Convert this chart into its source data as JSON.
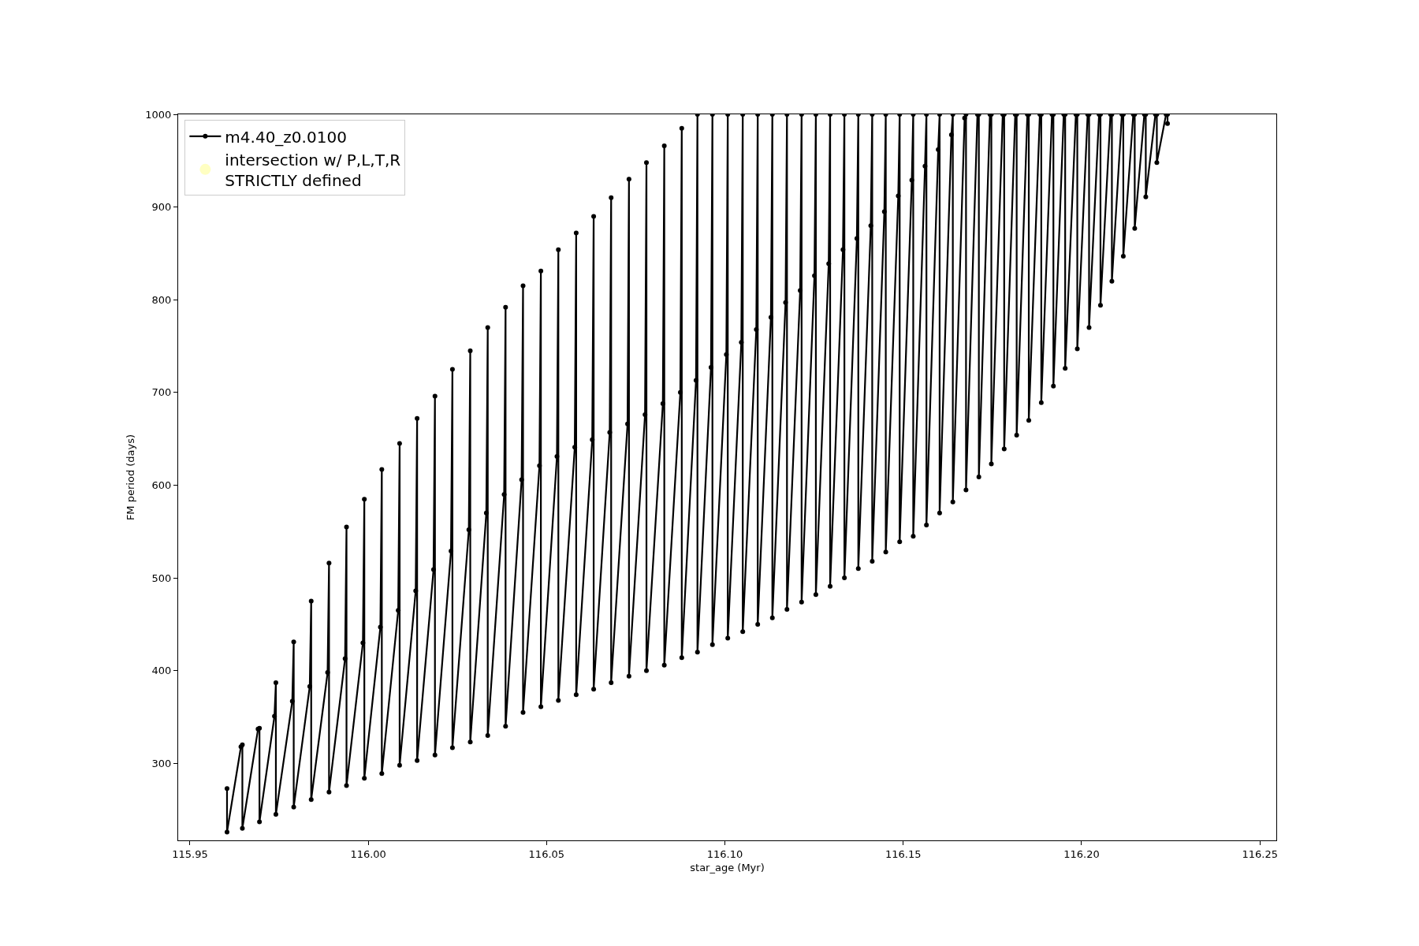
{
  "chart_data": {
    "type": "line",
    "xlabel": "star_age (Myr)",
    "ylabel": "FM period (days)",
    "xlim": [
      115.9467,
      116.2546
    ],
    "ylim": [
      217,
      1000
    ],
    "xticks": [
      {
        "value": 115.95,
        "label": "115.95"
      },
      {
        "value": 116.0,
        "label": "116.00"
      },
      {
        "value": 116.05,
        "label": "116.05"
      },
      {
        "value": 116.1,
        "label": "116.10"
      },
      {
        "value": 116.15,
        "label": "116.15"
      },
      {
        "value": 116.2,
        "label": "116.20"
      },
      {
        "value": 116.25,
        "label": "116.25"
      }
    ],
    "yticks": [
      300,
      400,
      500,
      600,
      700,
      800,
      900,
      1000
    ],
    "legend": "top left",
    "line_style": "solid",
    "series": [
      {
        "name": "m4.40_z0.0100",
        "color": "#000000",
        "marker": "circle",
        "x": [
          115.9604,
          115.9604,
          115.9643,
          115.9647,
          115.9647,
          115.9691,
          115.9695,
          115.9695,
          115.9737,
          115.9741,
          115.9741,
          115.9787,
          115.9791,
          115.9791,
          115.9836,
          115.984,
          115.984,
          115.9886,
          115.989,
          115.989,
          115.9935,
          115.9939,
          115.9939,
          115.9985,
          115.9989,
          115.9989,
          116.0034,
          116.0038,
          116.0038,
          116.0084,
          116.0088,
          116.0088,
          116.0133,
          116.0137,
          116.0137,
          116.0183,
          116.0187,
          116.0187,
          116.0232,
          116.0236,
          116.0236,
          116.0282,
          116.0286,
          116.0286,
          116.0331,
          116.0335,
          116.0335,
          116.0381,
          116.0385,
          116.0385,
          116.043,
          116.0434,
          116.0434,
          116.048,
          116.0484,
          116.0484,
          116.0529,
          116.0533,
          116.0533,
          116.0579,
          116.0583,
          116.0583,
          116.0628,
          116.0632,
          116.0632,
          116.0677,
          116.0681,
          116.0681,
          116.0727,
          116.0731,
          116.0731,
          116.0776,
          116.078,
          116.078,
          116.0826,
          116.083,
          116.083,
          116.0875,
          116.0879,
          116.0879,
          116.0919,
          116.0923,
          116.0923,
          116.0961,
          116.0965,
          116.0965,
          116.1004,
          116.1008,
          116.1008,
          116.1046,
          116.105,
          116.105,
          116.1088,
          116.1092,
          116.1092,
          116.1129,
          116.1133,
          116.1133,
          116.117,
          116.1174,
          116.1174,
          116.1211,
          116.1215,
          116.1215,
          116.1251,
          116.1255,
          116.1255,
          116.1291,
          116.1295,
          116.1295,
          116.1331,
          116.1335,
          116.1335,
          116.137,
          116.1374,
          116.1374,
          116.1409,
          116.1413,
          116.1413,
          116.1447,
          116.1451,
          116.1451,
          116.1486,
          116.149,
          116.149,
          116.1524,
          116.1528,
          116.1528,
          116.1561,
          116.1565,
          116.1565,
          116.1598,
          116.1602,
          116.1602,
          116.1635,
          116.1639,
          116.1639,
          116.1672,
          116.1676,
          116.1676,
          116.1708,
          116.1712,
          116.1712,
          116.1743,
          116.1747,
          116.1747,
          116.1779,
          116.1783,
          116.1783,
          116.1814,
          116.1818,
          116.1818,
          116.1848,
          116.1852,
          116.1852,
          116.1883,
          116.1887,
          116.1887,
          116.1917,
          116.1921,
          116.1921,
          116.195,
          116.1954,
          116.1954,
          116.1984,
          116.1988,
          116.1988,
          116.2017,
          116.2021,
          116.2021,
          116.2049,
          116.2053,
          116.2053,
          116.2081,
          116.2085,
          116.2085,
          116.2113,
          116.2117,
          116.2117,
          116.2145,
          116.2149,
          116.2149,
          116.2176,
          116.218,
          116.218,
          116.2207,
          116.2211,
          116.2211,
          116.2237,
          116.2241,
          116.2241
        ],
        "values": [
          273,
          226,
          318,
          320,
          230,
          337,
          338,
          237,
          351,
          387,
          245,
          367,
          431,
          253,
          383,
          475,
          261,
          398,
          516,
          269,
          413,
          555,
          276,
          430,
          585,
          284,
          447,
          617,
          289,
          465,
          645,
          298,
          486,
          672,
          303,
          509,
          696,
          309,
          529,
          725,
          317,
          552,
          745,
          323,
          570,
          770,
          330,
          590,
          792,
          340,
          606,
          815,
          355,
          621,
          831,
          361,
          631,
          854,
          368,
          641,
          872,
          374,
          649,
          890,
          380,
          657,
          910,
          387,
          666,
          930,
          394,
          676,
          948,
          400,
          688,
          966,
          406,
          700,
          985,
          414,
          713,
          1000,
          420,
          727,
          1000,
          428,
          741,
          1000,
          435,
          754,
          1000,
          442,
          768,
          1000,
          450,
          781,
          1000,
          457,
          797,
          1000,
          466,
          810,
          1000,
          474,
          826,
          1000,
          482,
          839,
          1000,
          491,
          854,
          1000,
          500,
          866,
          1000,
          510,
          880,
          1000,
          518,
          895,
          1000,
          528,
          912,
          1000,
          539,
          929,
          1000,
          545,
          944,
          1000,
          557,
          962,
          1000,
          570,
          978,
          1000,
          582,
          996,
          1000,
          595,
          1000,
          1000,
          609,
          1000,
          1000,
          623,
          1000,
          1000,
          639,
          1000,
          1000,
          654,
          1000,
          1000,
          670,
          1000,
          1000,
          689,
          1000,
          1000,
          707,
          1000,
          1000,
          726,
          1000,
          1000,
          747,
          1000,
          1000,
          770,
          1000,
          1000,
          794,
          1000,
          1000,
          820,
          1000,
          1000,
          847,
          1000,
          1000,
          877,
          1000,
          1000,
          911,
          1000,
          1000,
          948,
          1000,
          1000,
          990
        ]
      },
      {
        "name": "intersection w/ P,L,T,R\nSTRICTLY defined",
        "color": "#ffffb3",
        "type": "scatter",
        "marker": "circle"
      }
    ]
  }
}
